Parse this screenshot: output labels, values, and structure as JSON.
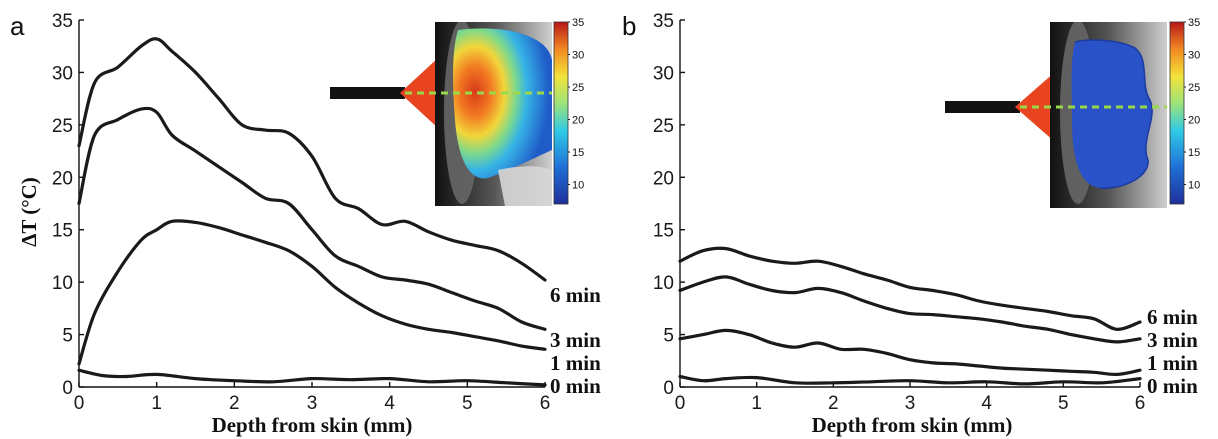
{
  "chart_data": [
    {
      "type": "line",
      "panel_label": "a",
      "xlabel": "Depth from skin (mm)",
      "ylabel": "ΔT (°C)",
      "xlim": [
        0,
        6
      ],
      "ylim": [
        0,
        35
      ],
      "xticks": [
        0,
        1,
        2,
        3,
        4,
        5,
        6
      ],
      "yticks": [
        0,
        5,
        10,
        15,
        20,
        25,
        30,
        35
      ],
      "grid": false,
      "series": [
        {
          "name": "6 min",
          "x": [
            0,
            0.2,
            0.5,
            0.8,
            1.0,
            1.2,
            1.5,
            1.8,
            2.1,
            2.4,
            2.7,
            3.0,
            3.3,
            3.6,
            3.9,
            4.2,
            4.5,
            4.8,
            5.1,
            5.4,
            5.7,
            6.0
          ],
          "values": [
            23,
            29,
            30.5,
            32.5,
            33.2,
            32,
            30,
            27.5,
            25,
            24.5,
            24.2,
            22,
            18,
            17,
            15.5,
            15.8,
            14.8,
            14,
            13.5,
            13,
            11.8,
            10.2
          ]
        },
        {
          "name": "3 min",
          "x": [
            0,
            0.2,
            0.5,
            0.8,
            1.0,
            1.2,
            1.5,
            1.8,
            2.1,
            2.4,
            2.7,
            3.0,
            3.3,
            3.6,
            3.9,
            4.2,
            4.5,
            4.8,
            5.1,
            5.4,
            5.7,
            6.0
          ],
          "values": [
            17.5,
            24,
            25.5,
            26.5,
            26.2,
            24,
            22.5,
            21,
            19.5,
            18,
            17.5,
            15,
            12.5,
            11.5,
            10.5,
            10.2,
            9.8,
            9,
            8.2,
            7.5,
            6.2,
            5.5
          ]
        },
        {
          "name": "1 min",
          "x": [
            0,
            0.2,
            0.5,
            0.8,
            1.0,
            1.2,
            1.5,
            1.8,
            2.1,
            2.4,
            2.7,
            3.0,
            3.3,
            3.6,
            3.9,
            4.2,
            4.5,
            4.8,
            5.1,
            5.4,
            5.7,
            6.0
          ],
          "values": [
            2.2,
            7,
            11,
            14,
            15,
            15.8,
            15.7,
            15.2,
            14.5,
            13.8,
            13,
            11.5,
            9.5,
            8,
            6.8,
            6,
            5.5,
            5.2,
            4.8,
            4.4,
            3.9,
            3.6
          ]
        },
        {
          "name": "0 min",
          "x": [
            0,
            0.3,
            0.6,
            1.0,
            1.5,
            2.0,
            2.5,
            3.0,
            3.5,
            4.0,
            4.5,
            5.0,
            5.5,
            6.0
          ],
          "values": [
            1.6,
            1.1,
            1.0,
            1.2,
            0.8,
            0.6,
            0.5,
            0.8,
            0.7,
            0.8,
            0.5,
            0.6,
            0.4,
            0.2
          ]
        }
      ],
      "inset": {
        "colorbar_ticks": [
          10,
          15,
          20,
          25,
          30,
          35
        ]
      }
    },
    {
      "type": "line",
      "panel_label": "b",
      "xlabel": "Depth from skin (mm)",
      "ylabel": "",
      "xlim": [
        0,
        6
      ],
      "ylim": [
        0,
        35
      ],
      "xticks": [
        0,
        1,
        2,
        3,
        4,
        5,
        6
      ],
      "yticks": [
        0,
        5,
        10,
        15,
        20,
        25,
        30,
        35
      ],
      "grid": false,
      "series": [
        {
          "name": "6 min",
          "x": [
            0,
            0.3,
            0.6,
            0.9,
            1.2,
            1.5,
            1.8,
            2.1,
            2.4,
            2.7,
            3.0,
            3.3,
            3.6,
            3.9,
            4.2,
            4.5,
            4.8,
            5.1,
            5.4,
            5.7,
            6.0
          ],
          "values": [
            12,
            13,
            13.2,
            12.5,
            12,
            11.8,
            12,
            11.5,
            10.8,
            10.2,
            9.5,
            9.2,
            8.8,
            8.2,
            7.8,
            7.5,
            7.2,
            6.8,
            6.5,
            5.5,
            6.2
          ]
        },
        {
          "name": "3 min",
          "x": [
            0,
            0.3,
            0.6,
            0.9,
            1.2,
            1.5,
            1.8,
            2.1,
            2.4,
            2.7,
            3.0,
            3.3,
            3.6,
            3.9,
            4.2,
            4.5,
            4.8,
            5.1,
            5.4,
            5.7,
            6.0
          ],
          "values": [
            9.2,
            10,
            10.5,
            9.8,
            9.2,
            9.0,
            9.4,
            9.0,
            8.2,
            7.5,
            7.0,
            6.9,
            6.7,
            6.5,
            6.2,
            5.8,
            5.5,
            5.0,
            4.6,
            4.3,
            4.6
          ]
        },
        {
          "name": "1 min",
          "x": [
            0,
            0.3,
            0.6,
            0.9,
            1.2,
            1.5,
            1.8,
            2.1,
            2.4,
            2.7,
            3.0,
            3.3,
            3.6,
            3.9,
            4.2,
            4.5,
            4.8,
            5.1,
            5.4,
            5.7,
            6.0
          ],
          "values": [
            4.6,
            5.0,
            5.4,
            5.0,
            4.2,
            3.8,
            4.2,
            3.6,
            3.6,
            3.2,
            2.6,
            2.3,
            2.2,
            2.0,
            1.8,
            1.7,
            1.6,
            1.5,
            1.4,
            1.2,
            1.6
          ]
        },
        {
          "name": "0 min",
          "x": [
            0,
            0.3,
            0.6,
            1.0,
            1.5,
            2.0,
            2.5,
            3.0,
            3.5,
            4.0,
            4.5,
            5.0,
            5.5,
            6.0
          ],
          "values": [
            1.0,
            0.6,
            0.8,
            0.9,
            0.4,
            0.4,
            0.5,
            0.6,
            0.4,
            0.5,
            0.3,
            0.5,
            0.4,
            0.8
          ]
        }
      ],
      "inset": {
        "colorbar_ticks": [
          10,
          15,
          20,
          25,
          30,
          35
        ]
      }
    }
  ]
}
